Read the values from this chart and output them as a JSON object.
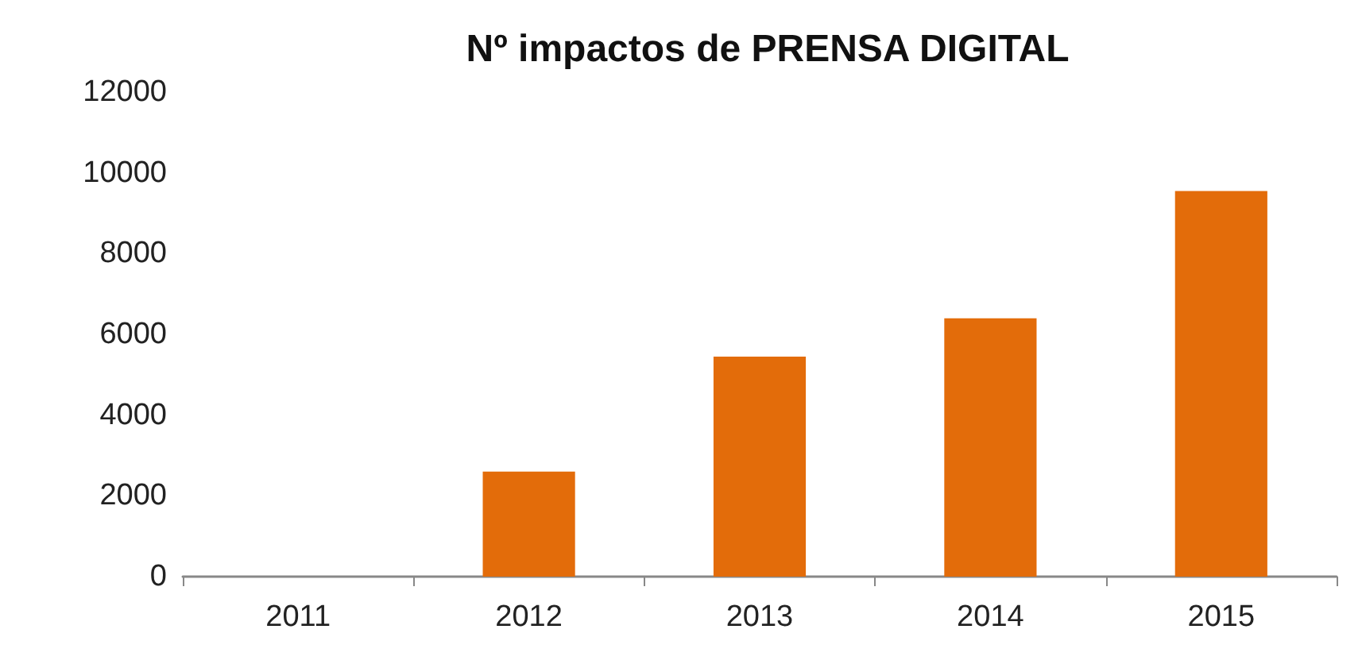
{
  "chart_data": {
    "type": "bar",
    "title": "Nº impactos de PRENSA DIGITAL",
    "categories": [
      "2011",
      "2012",
      "2013",
      "2014",
      "2015"
    ],
    "values": [
      0,
      2600,
      5450,
      6400,
      9550
    ],
    "color": "#e36c0a",
    "ylim": [
      0,
      12000
    ],
    "yticks": [
      0,
      2000,
      4000,
      6000,
      8000,
      10000,
      12000
    ],
    "grid": false
  }
}
